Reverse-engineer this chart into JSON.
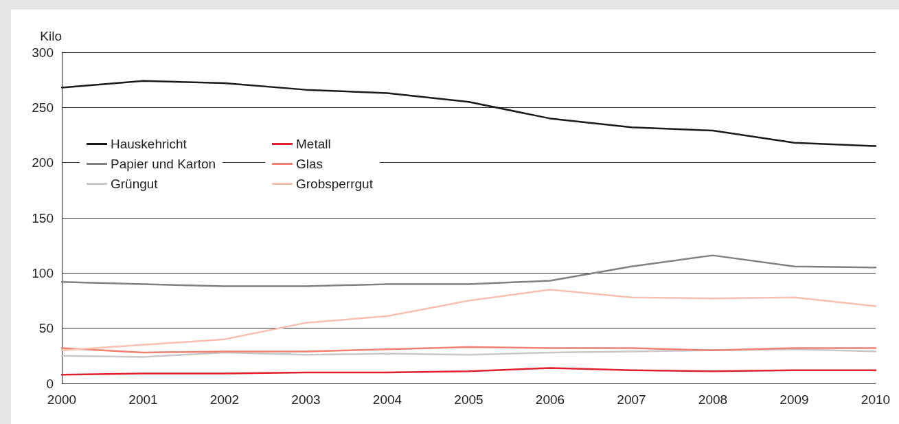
{
  "chart_data": {
    "type": "line",
    "ylabel": "Kilo",
    "categories": [
      "2000",
      "2001",
      "2002",
      "2003",
      "2004",
      "2005",
      "2006",
      "2007",
      "2008",
      "2009",
      "2010"
    ],
    "series": [
      {
        "name": "Hauskehricht",
        "color": "#1a1a1a",
        "values": [
          268,
          274,
          272,
          266,
          263,
          255,
          240,
          232,
          229,
          218,
          215
        ]
      },
      {
        "name": "Papier und Karton",
        "color": "#808080",
        "values": [
          92,
          90,
          88,
          88,
          90,
          90,
          93,
          106,
          116,
          106,
          105
        ]
      },
      {
        "name": "Grüngut",
        "color": "#c8c8c8",
        "values": [
          25,
          24,
          28,
          26,
          27,
          26,
          28,
          29,
          30,
          31,
          29
        ]
      },
      {
        "name": "Metall",
        "color": "#e0202c",
        "values": [
          8,
          9,
          9,
          10,
          10,
          11,
          14,
          12,
          11,
          12,
          12
        ]
      },
      {
        "name": "Glas",
        "color": "#f08070",
        "values": [
          32,
          28,
          29,
          29,
          31,
          33,
          32,
          32,
          30,
          32,
          32
        ]
      },
      {
        "name": "Grobsperrgut",
        "color": "#f8c0b0",
        "values": [
          30,
          35,
          40,
          55,
          61,
          75,
          85,
          78,
          77,
          78,
          70
        ]
      }
    ],
    "ylim": [
      0,
      300
    ],
    "yticks": [
      0,
      50,
      100,
      150,
      200,
      250,
      300
    ],
    "grid": "y",
    "legend": "top left",
    "marker": "none",
    "line_style": "solid"
  }
}
